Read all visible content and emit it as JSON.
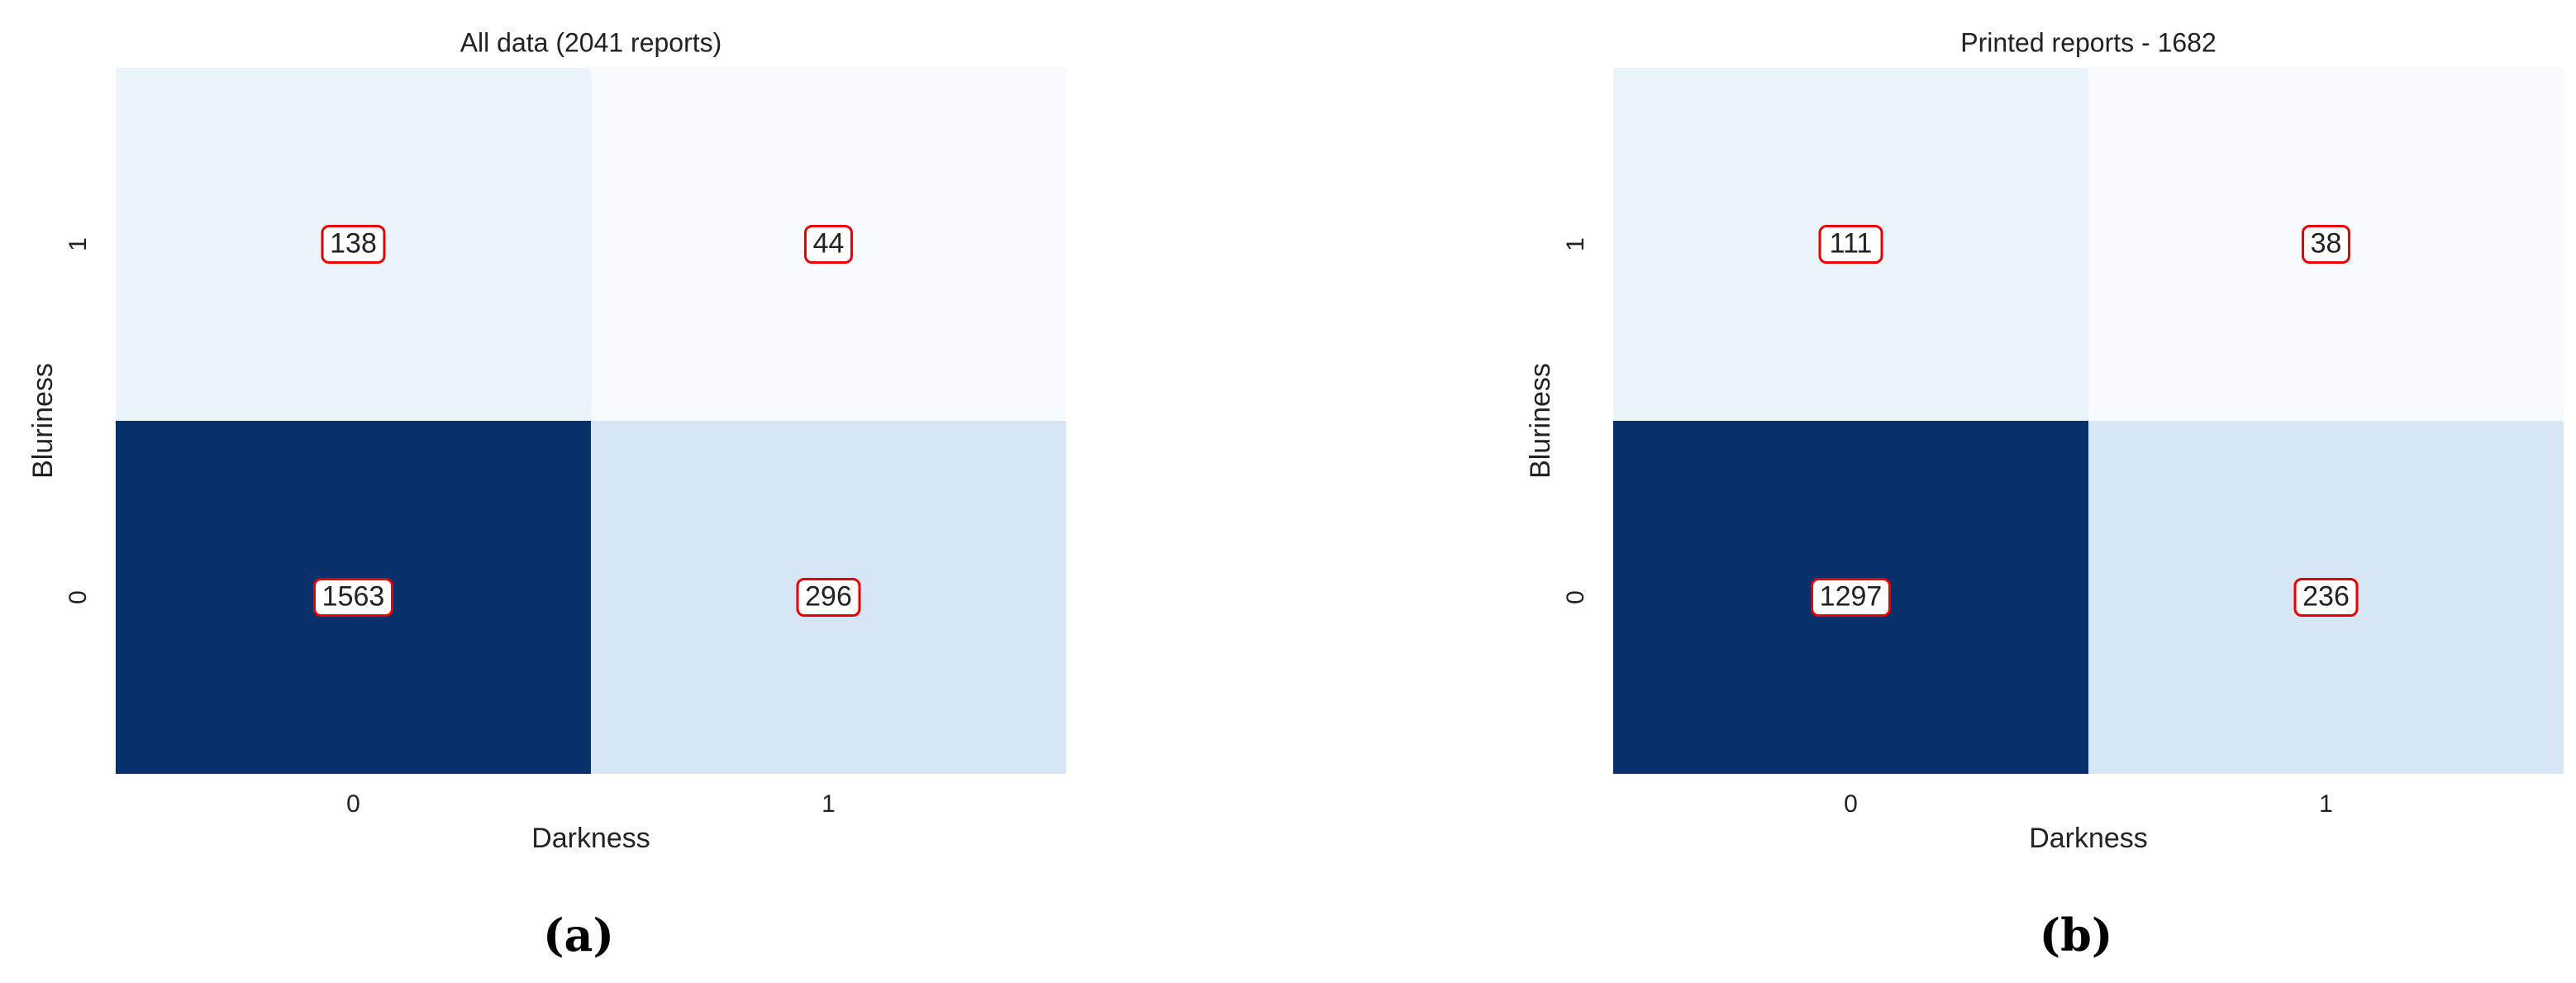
{
  "chart_data": [
    {
      "type": "heatmap",
      "title": "All data (2041 reports)",
      "xlabel": "Darkness",
      "ylabel": "Bluriness",
      "x_categories": [
        "0",
        "1"
      ],
      "y_categories": [
        "1",
        "0"
      ],
      "values": [
        [
          138,
          44
        ],
        [
          1563,
          296
        ]
      ],
      "colormap": "Blues",
      "caption": "(a)"
    },
    {
      "type": "heatmap",
      "title": "Printed reports - 1682",
      "xlabel": "Darkness",
      "ylabel": "Bluriness",
      "x_categories": [
        "0",
        "1"
      ],
      "y_categories": [
        "1",
        "0"
      ],
      "values": [
        [
          111,
          38
        ],
        [
          1297,
          236
        ]
      ],
      "colormap": "Blues",
      "caption": "(b)"
    }
  ]
}
